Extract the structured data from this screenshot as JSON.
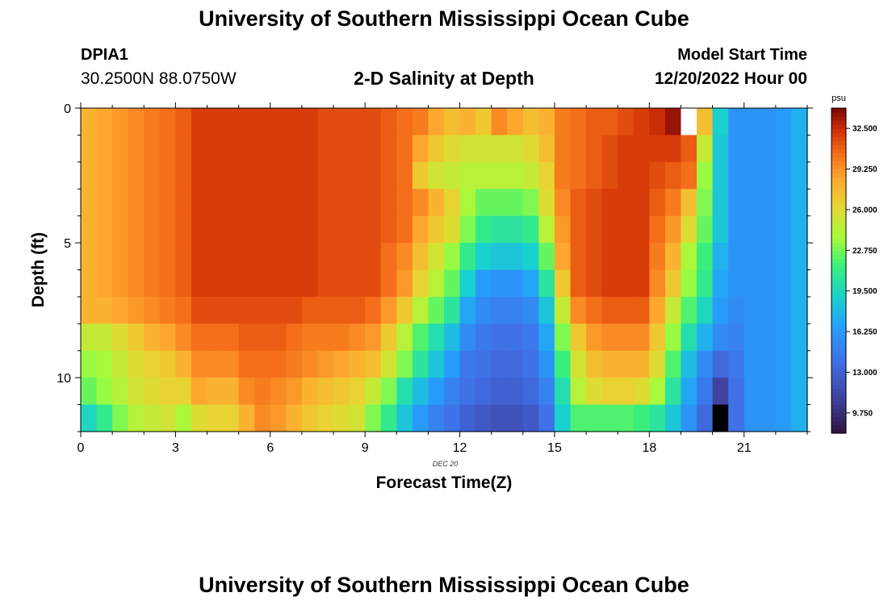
{
  "header": {
    "main_title": "University of Southern Mississippi Ocean Cube",
    "station_id": "DPIA1",
    "station_coords": "30.2500N  88.0750W",
    "plot_title": "2-D Salinity at Depth",
    "model_start_label": "Model Start Time",
    "model_start_value": "12/20/2022 Hour 00"
  },
  "footer": {
    "title": "University of Southern Mississippi Ocean Cube"
  },
  "chart_data": {
    "type": "heatmap",
    "title": "2-D Salinity at Depth",
    "xlabel": "Forecast Time(Z)",
    "ylabel": "Depth (ft)",
    "date_label": "DEC 20",
    "xlim": [
      0,
      23
    ],
    "ylim": [
      0,
      12
    ],
    "x_ticks": [
      0,
      3,
      6,
      9,
      12,
      15,
      18,
      21
    ],
    "y_ticks": [
      0,
      5,
      10
    ],
    "colorbar": {
      "unit": "psu",
      "min": 8.125,
      "max": 34.125,
      "ticks": [
        "32.500",
        "29.250",
        "26.000",
        "22.750",
        "19.500",
        "16.250",
        "13.000",
        "9.750"
      ],
      "tick_values": [
        32.5,
        29.25,
        26.0,
        22.75,
        19.5,
        16.25,
        13.0,
        9.75
      ]
    },
    "depth_levels_ft": [
      0.5,
      1.5,
      2.5,
      3.5,
      4.5,
      5.5,
      6.5,
      7.5,
      8.5,
      9.5,
      10.5,
      11.5
    ],
    "time_hours": [
      0.25,
      0.75,
      1.25,
      1.75,
      2.25,
      2.75,
      3.25,
      3.75,
      4.25,
      4.75,
      5.25,
      5.75,
      6.25,
      6.75,
      7.25,
      7.75,
      8.25,
      8.75,
      9.25,
      9.75,
      10.25,
      10.75,
      11.25,
      11.75,
      12.25,
      12.75,
      13.25,
      13.75,
      14.25,
      14.75,
      15.25,
      15.75,
      16.25,
      16.75,
      17.25,
      17.75,
      18.25,
      18.75,
      19.25,
      19.75,
      20.25,
      20.75,
      21.25,
      21.75,
      22.25,
      22.75
    ],
    "salinity_psu": [
      [
        28.0,
        28.5,
        29.0,
        29.5,
        30.0,
        30.5,
        31.0,
        32.0,
        32.0,
        32.0,
        32.0,
        32.0,
        32.0,
        32.0,
        32.0,
        31.5,
        31.5,
        31.5,
        31.5,
        31.0,
        30.5,
        30.0,
        28.5,
        27.5,
        28.0,
        27.0,
        29.5,
        28.5,
        27.5,
        28.0,
        30.0,
        30.5,
        31.0,
        31.0,
        31.5,
        32.0,
        32.5,
        33.5,
        null,
        27.5,
        19.0,
        16.0,
        16.0,
        16.0,
        16.5,
        17.5
      ],
      [
        28.0,
        28.5,
        29.0,
        29.5,
        30.0,
        30.5,
        31.0,
        32.0,
        32.0,
        32.0,
        32.0,
        32.0,
        32.0,
        32.0,
        32.0,
        31.5,
        31.5,
        31.5,
        31.5,
        31.0,
        30.5,
        28.5,
        27.0,
        26.0,
        25.5,
        25.5,
        25.5,
        25.5,
        26.0,
        27.5,
        30.0,
        30.5,
        31.0,
        31.5,
        32.0,
        32.0,
        32.0,
        32.0,
        31.0,
        25.0,
        18.5,
        16.0,
        16.0,
        16.0,
        16.5,
        17.5
      ],
      [
        28.0,
        28.5,
        29.0,
        29.5,
        30.0,
        30.5,
        31.0,
        32.0,
        32.0,
        32.0,
        32.0,
        32.0,
        32.0,
        32.0,
        32.0,
        31.5,
        31.5,
        31.5,
        31.5,
        31.0,
        30.5,
        27.0,
        25.5,
        25.0,
        24.5,
        24.5,
        24.5,
        24.5,
        25.0,
        26.5,
        30.0,
        30.5,
        31.0,
        31.5,
        32.0,
        32.0,
        31.5,
        31.0,
        30.5,
        23.5,
        18.5,
        16.0,
        16.0,
        16.0,
        16.5,
        17.5
      ],
      [
        28.0,
        28.5,
        29.0,
        29.5,
        30.0,
        30.5,
        31.0,
        32.0,
        32.0,
        32.0,
        32.0,
        32.0,
        32.0,
        32.0,
        32.0,
        31.5,
        31.5,
        31.5,
        31.5,
        31.0,
        30.5,
        29.5,
        28.0,
        26.5,
        24.0,
        22.5,
        22.5,
        22.5,
        23.0,
        26.0,
        29.5,
        31.0,
        31.5,
        32.0,
        32.0,
        32.0,
        31.0,
        30.0,
        27.5,
        23.0,
        18.5,
        16.0,
        16.0,
        16.0,
        16.5,
        17.5
      ],
      [
        28.0,
        28.5,
        29.0,
        29.5,
        30.0,
        30.5,
        31.0,
        32.0,
        32.0,
        32.0,
        32.0,
        32.0,
        32.0,
        32.0,
        32.0,
        31.5,
        31.5,
        31.5,
        31.5,
        31.0,
        30.5,
        28.5,
        27.0,
        26.0,
        23.0,
        21.0,
        20.5,
        20.5,
        21.0,
        24.5,
        29.0,
        31.0,
        31.5,
        32.0,
        32.0,
        32.0,
        30.5,
        29.0,
        26.0,
        22.5,
        18.5,
        16.0,
        16.0,
        16.0,
        16.5,
        17.5
      ],
      [
        28.0,
        28.5,
        29.0,
        29.5,
        30.0,
        30.5,
        31.0,
        32.0,
        32.0,
        32.0,
        32.0,
        32.0,
        32.0,
        32.0,
        32.0,
        31.5,
        31.5,
        31.5,
        31.5,
        30.5,
        29.5,
        27.5,
        25.5,
        23.5,
        21.0,
        19.0,
        18.5,
        18.5,
        19.0,
        22.5,
        28.5,
        31.0,
        31.5,
        32.0,
        32.0,
        32.0,
        30.0,
        28.0,
        24.0,
        21.5,
        17.5,
        16.0,
        16.0,
        16.0,
        16.5,
        17.5
      ],
      [
        28.0,
        28.5,
        29.0,
        29.5,
        30.0,
        30.5,
        31.0,
        32.0,
        32.0,
        32.0,
        32.0,
        32.0,
        32.0,
        32.0,
        32.0,
        31.5,
        31.5,
        31.5,
        31.5,
        30.5,
        29.0,
        26.5,
        24.5,
        22.5,
        19.0,
        16.5,
        16.0,
        16.0,
        17.0,
        20.5,
        27.0,
        31.0,
        31.5,
        32.0,
        32.0,
        32.0,
        29.5,
        27.0,
        23.5,
        21.0,
        17.0,
        16.0,
        16.0,
        16.0,
        16.5,
        17.5
      ],
      [
        28.0,
        28.0,
        28.5,
        29.0,
        29.5,
        30.0,
        30.5,
        31.5,
        31.5,
        31.5,
        31.5,
        31.5,
        31.5,
        31.5,
        31.0,
        31.0,
        31.0,
        31.0,
        30.5,
        29.0,
        27.0,
        24.5,
        22.5,
        20.5,
        17.0,
        15.5,
        15.0,
        15.0,
        15.5,
        18.5,
        25.0,
        29.5,
        30.5,
        31.0,
        31.0,
        31.0,
        28.5,
        25.0,
        22.0,
        19.5,
        16.5,
        15.5,
        16.0,
        16.0,
        16.5,
        17.5
      ],
      [
        25.0,
        25.0,
        26.0,
        27.0,
        28.0,
        28.5,
        29.5,
        30.5,
        30.5,
        30.5,
        31.0,
        31.0,
        31.0,
        30.5,
        30.0,
        30.0,
        30.0,
        29.5,
        29.0,
        27.0,
        24.5,
        22.0,
        20.0,
        18.0,
        15.5,
        14.5,
        14.0,
        14.0,
        14.5,
        17.0,
        23.0,
        27.0,
        29.0,
        29.5,
        29.5,
        29.5,
        27.0,
        23.5,
        20.0,
        17.5,
        15.5,
        15.0,
        16.0,
        16.0,
        16.5,
        17.5
      ],
      [
        23.5,
        24.0,
        25.0,
        26.0,
        26.5,
        27.0,
        28.0,
        29.5,
        29.5,
        29.5,
        30.5,
        30.5,
        30.5,
        30.0,
        29.5,
        29.0,
        28.5,
        28.0,
        27.5,
        25.5,
        23.0,
        20.5,
        18.5,
        16.5,
        14.5,
        14.0,
        13.5,
        13.5,
        14.0,
        16.0,
        21.5,
        25.5,
        27.5,
        28.0,
        28.0,
        28.0,
        26.0,
        22.0,
        18.0,
        15.5,
        13.5,
        14.5,
        16.0,
        16.0,
        16.5,
        17.5
      ],
      [
        22.5,
        23.5,
        24.5,
        25.5,
        26.0,
        26.5,
        26.5,
        28.5,
        28.0,
        28.0,
        29.5,
        30.0,
        29.5,
        29.0,
        28.0,
        27.5,
        27.0,
        26.5,
        25.0,
        23.0,
        20.0,
        18.0,
        16.5,
        15.0,
        14.0,
        13.5,
        13.0,
        13.0,
        13.5,
        15.0,
        20.0,
        24.5,
        26.0,
        26.5,
        26.5,
        26.0,
        24.0,
        20.5,
        17.0,
        14.5,
        11.0,
        14.0,
        16.0,
        16.0,
        16.5,
        17.5
      ],
      [
        19.5,
        21.0,
        23.0,
        24.5,
        25.0,
        25.5,
        24.0,
        26.0,
        26.5,
        26.5,
        28.0,
        29.5,
        29.0,
        28.0,
        27.0,
        26.5,
        26.0,
        25.5,
        23.0,
        21.0,
        18.5,
        16.5,
        15.0,
        14.0,
        13.0,
        12.5,
        12.0,
        12.0,
        12.5,
        14.0,
        19.0,
        22.0,
        22.0,
        22.0,
        22.0,
        21.5,
        20.5,
        18.5,
        16.0,
        13.5,
        null,
        14.0,
        16.0,
        16.0,
        16.5,
        17.5
      ]
    ]
  }
}
